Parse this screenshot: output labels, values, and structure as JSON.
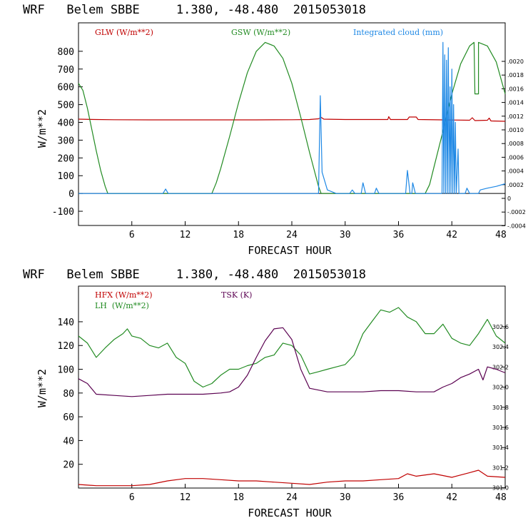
{
  "chart_data": [
    {
      "type": "line",
      "title": "WRF   Belem SBBE     1.380, -48.480  2015053018",
      "xlabel": "FORECAST HOUR",
      "ylabel": "W/m**2",
      "xlim": [
        0,
        48
      ],
      "ylim": [
        -180,
        960
      ],
      "x_ticks": [
        "6",
        "12",
        "18",
        "24",
        "30",
        "36",
        "42",
        "48"
      ],
      "y_ticks": [
        "-100",
        "0",
        "100",
        "200",
        "300",
        "400",
        "500",
        "600",
        "700",
        "800"
      ],
      "right_axis_ticks": [
        ".0020",
        ".0018",
        ".0016",
        ".0014",
        ".0012",
        ".0010",
        ".0008",
        ".0006",
        ".0004",
        ".0002",
        "0",
        "-.0002",
        "-.0004"
      ],
      "legend": [
        {
          "label": "GLW (W/m**2)",
          "color": "#c00000"
        },
        {
          "label": "GSW (W/m**2)",
          "color": "#228b22"
        },
        {
          "label": "Integrated cloud (mm)",
          "color": "#1e88e5"
        }
      ],
      "series": [
        {
          "name": "GLW",
          "color": "#c00000",
          "points": [
            [
              0,
              418
            ],
            [
              2,
              416
            ],
            [
              4,
              415
            ],
            [
              8,
              414
            ],
            [
              12,
              414
            ],
            [
              16,
              414
            ],
            [
              20,
              414
            ],
            [
              24,
              415
            ],
            [
              26,
              416
            ],
            [
              27,
              420
            ],
            [
              27.3,
              428
            ],
            [
              27.6,
              418
            ],
            [
              30,
              416
            ],
            [
              34,
              416
            ],
            [
              34.8,
              416
            ],
            [
              34.9,
              432
            ],
            [
              35.1,
              416
            ],
            [
              37,
              416
            ],
            [
              37.2,
              430
            ],
            [
              38,
              430
            ],
            [
              38.2,
              416
            ],
            [
              41,
              414
            ],
            [
              44,
              412
            ],
            [
              44.3,
              426
            ],
            [
              44.6,
              410
            ],
            [
              46,
              412
            ],
            [
              46.2,
              424
            ],
            [
              46.4,
              408
            ],
            [
              48,
              406
            ]
          ]
        },
        {
          "name": "GSW",
          "color": "#228b22",
          "points": [
            [
              0,
              620
            ],
            [
              0.5,
              580
            ],
            [
              1,
              480
            ],
            [
              1.5,
              360
            ],
            [
              2,
              240
            ],
            [
              2.5,
              130
            ],
            [
              3,
              40
            ],
            [
              3.3,
              0
            ],
            [
              15,
              0
            ],
            [
              15.5,
              60
            ],
            [
              16,
              140
            ],
            [
              17,
              320
            ],
            [
              18,
              510
            ],
            [
              19,
              680
            ],
            [
              20,
              800
            ],
            [
              21,
              850
            ],
            [
              22,
              830
            ],
            [
              23,
              760
            ],
            [
              24,
              620
            ],
            [
              25,
              430
            ],
            [
              26,
              230
            ],
            [
              27,
              40
            ],
            [
              27.3,
              0
            ],
            [
              39,
              0
            ],
            [
              39.5,
              50
            ],
            [
              40,
              150
            ],
            [
              41,
              350
            ],
            [
              42,
              560
            ],
            [
              43,
              730
            ],
            [
              44,
              830
            ],
            [
              44.5,
              850
            ],
            [
              44.6,
              560
            ],
            [
              45,
              560
            ],
            [
              45,
              850
            ],
            [
              46,
              830
            ],
            [
              47,
              740
            ],
            [
              48,
              560
            ]
          ]
        },
        {
          "name": "Integrated cloud",
          "color": "#1e88e5",
          "points": [
            [
              0,
              0
            ],
            [
              9.5,
              0
            ],
            [
              9.8,
              25
            ],
            [
              10.1,
              0
            ],
            [
              27,
              0
            ],
            [
              27.2,
              550
            ],
            [
              27.4,
              120
            ],
            [
              28,
              20
            ],
            [
              29,
              0
            ],
            [
              30.5,
              0
            ],
            [
              30.8,
              20
            ],
            [
              31.1,
              0
            ],
            [
              31.8,
              0
            ],
            [
              32,
              60
            ],
            [
              32.3,
              0
            ],
            [
              33.3,
              0
            ],
            [
              33.5,
              30
            ],
            [
              33.8,
              0
            ],
            [
              36.8,
              0
            ],
            [
              37,
              130
            ],
            [
              37.3,
              0
            ],
            [
              37.5,
              0
            ],
            [
              37.6,
              60
            ],
            [
              37.9,
              0
            ],
            [
              40.9,
              0
            ],
            [
              41,
              850
            ],
            [
              41.1,
              0
            ],
            [
              41.2,
              780
            ],
            [
              41.3,
              0
            ],
            [
              41.4,
              750
            ],
            [
              41.5,
              0
            ],
            [
              41.6,
              820
            ],
            [
              41.7,
              0
            ],
            [
              41.8,
              600
            ],
            [
              41.9,
              0
            ],
            [
              42,
              700
            ],
            [
              42.1,
              0
            ],
            [
              42.2,
              500
            ],
            [
              42.3,
              0
            ],
            [
              42.4,
              400
            ],
            [
              42.5,
              0
            ],
            [
              42.7,
              250
            ],
            [
              42.8,
              0
            ],
            [
              43.5,
              0
            ],
            [
              43.7,
              30
            ],
            [
              44,
              0
            ],
            [
              45,
              0
            ],
            [
              45.2,
              20
            ],
            [
              46,
              30
            ],
            [
              47,
              40
            ],
            [
              48,
              55
            ]
          ]
        }
      ]
    },
    {
      "type": "line",
      "title": "WRF   Belem SBBE     1.380, -48.480  2015053018",
      "xlabel": "FORECAST HOUR",
      "ylabel": "W/m**2",
      "xlim": [
        0,
        48
      ],
      "ylim": [
        0,
        170
      ],
      "x_ticks": [
        "6",
        "12",
        "18",
        "24",
        "30",
        "36",
        "42",
        "48"
      ],
      "y_ticks": [
        "20",
        "40",
        "60",
        "80",
        "100",
        "120",
        "140"
      ],
      "right_axis_ticks": [
        "302.6",
        "302.4",
        "302.2",
        "302.0",
        "301.8",
        "301.6",
        "301.4",
        "301.2",
        "301.0"
      ],
      "legend": [
        {
          "label": "HFX (W/m**2)",
          "color": "#c00000"
        },
        {
          "label": "LH  (W/m**2)",
          "color": "#228b22"
        },
        {
          "label": "TSK (K)",
          "color": "#5a0050"
        }
      ],
      "series": [
        {
          "name": "HFX",
          "color": "#c00000",
          "points": [
            [
              0,
              3
            ],
            [
              2,
              2
            ],
            [
              4,
              2
            ],
            [
              6,
              2
            ],
            [
              8,
              3
            ],
            [
              10,
              6
            ],
            [
              12,
              8
            ],
            [
              14,
              8
            ],
            [
              16,
              7
            ],
            [
              18,
              6
            ],
            [
              20,
              6
            ],
            [
              22,
              5
            ],
            [
              24,
              4
            ],
            [
              26,
              3
            ],
            [
              28,
              5
            ],
            [
              30,
              6
            ],
            [
              32,
              6
            ],
            [
              34,
              7
            ],
            [
              36,
              8
            ],
            [
              37,
              12
            ],
            [
              38,
              10
            ],
            [
              40,
              12
            ],
            [
              42,
              9
            ],
            [
              44,
              13
            ],
            [
              45,
              15
            ],
            [
              46,
              10
            ],
            [
              48,
              9
            ]
          ]
        },
        {
          "name": "LH",
          "color": "#228b22",
          "points": [
            [
              0,
              128
            ],
            [
              1,
              122
            ],
            [
              2,
              110
            ],
            [
              3,
              118
            ],
            [
              4,
              125
            ],
            [
              5,
              130
            ],
            [
              5.5,
              134
            ],
            [
              6,
              128
            ],
            [
              7,
              126
            ],
            [
              8,
              120
            ],
            [
              9,
              118
            ],
            [
              10,
              122
            ],
            [
              11,
              110
            ],
            [
              12,
              105
            ],
            [
              13,
              90
            ],
            [
              14,
              85
            ],
            [
              15,
              88
            ],
            [
              16,
              95
            ],
            [
              17,
              100
            ],
            [
              18,
              100
            ],
            [
              19,
              103
            ],
            [
              20,
              105
            ],
            [
              21,
              110
            ],
            [
              22,
              112
            ],
            [
              23,
              122
            ],
            [
              24,
              120
            ],
            [
              25,
              112
            ],
            [
              26,
              96
            ],
            [
              27,
              98
            ],
            [
              28,
              100
            ],
            [
              29,
              102
            ],
            [
              30,
              104
            ],
            [
              31,
              112
            ],
            [
              32,
              130
            ],
            [
              33,
              140
            ],
            [
              34,
              150
            ],
            [
              35,
              148
            ],
            [
              36,
              152
            ],
            [
              37,
              144
            ],
            [
              38,
              140
            ],
            [
              39,
              130
            ],
            [
              40,
              130
            ],
            [
              41,
              138
            ],
            [
              42,
              126
            ],
            [
              43,
              122
            ],
            [
              44,
              120
            ],
            [
              45,
              130
            ],
            [
              46,
              142
            ],
            [
              47,
              128
            ],
            [
              48,
              122
            ]
          ]
        },
        {
          "name": "TSK",
          "color": "#5a0050",
          "points": [
            [
              0,
              92
            ],
            [
              1,
              88
            ],
            [
              2,
              79
            ],
            [
              4,
              78
            ],
            [
              6,
              77
            ],
            [
              8,
              78
            ],
            [
              10,
              79
            ],
            [
              12,
              79
            ],
            [
              14,
              79
            ],
            [
              16,
              80
            ],
            [
              17,
              81
            ],
            [
              18,
              85
            ],
            [
              19,
              95
            ],
            [
              20,
              110
            ],
            [
              21,
              124
            ],
            [
              22,
              134
            ],
            [
              23,
              135
            ],
            [
              24,
              125
            ],
            [
              25,
              100
            ],
            [
              26,
              84
            ],
            [
              28,
              81
            ],
            [
              30,
              81
            ],
            [
              32,
              81
            ],
            [
              34,
              82
            ],
            [
              36,
              82
            ],
            [
              38,
              81
            ],
            [
              40,
              81
            ],
            [
              41,
              85
            ],
            [
              42,
              88
            ],
            [
              43,
              93
            ],
            [
              44,
              96
            ],
            [
              45,
              100
            ],
            [
              45.5,
              91
            ],
            [
              46,
              102
            ],
            [
              47,
              100
            ],
            [
              48,
              97
            ]
          ]
        }
      ]
    }
  ]
}
